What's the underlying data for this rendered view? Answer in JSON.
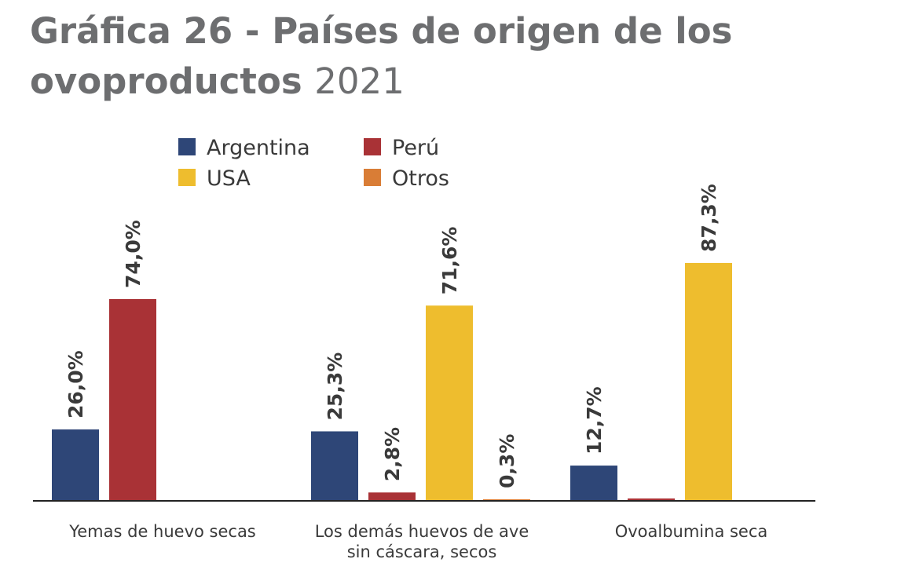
{
  "chart_data": {
    "type": "bar",
    "title": "Gráfica 26 - Países de origen de los ovoproductos",
    "subtitle": "2021",
    "categories": [
      "Yemas de huevo secas",
      "Los demás huevos de ave sin cáscara, secos",
      "Ovoalbumina seca"
    ],
    "category_lines": [
      [
        "Yemas de huevo secas"
      ],
      [
        "Los demás huevos de ave",
        "sin cáscara, secos"
      ],
      [
        "Ovoalbumina seca"
      ]
    ],
    "series": [
      {
        "name": "Argentina",
        "color": "#2e4677",
        "values": [
          26.0,
          25.3,
          12.7
        ],
        "labels": [
          "26,0%",
          "25,3%",
          "12,7%"
        ]
      },
      {
        "name": "Perú",
        "color": "#a93236",
        "values": [
          74.0,
          2.8,
          0.6
        ],
        "labels": [
          "74,0%",
          "2,8%",
          ""
        ]
      },
      {
        "name": "USA",
        "color": "#eebd2e",
        "values": [
          0,
          71.6,
          87.3
        ],
        "labels": [
          "",
          "71,6%",
          "87,3%"
        ]
      },
      {
        "name": "Otros",
        "color": "#d97d36",
        "values": [
          0,
          0.3,
          0
        ],
        "labels": [
          "",
          "0,3%",
          ""
        ]
      }
    ],
    "ylim": [
      0,
      100
    ],
    "legend_position": "top-left",
    "grid": false
  }
}
